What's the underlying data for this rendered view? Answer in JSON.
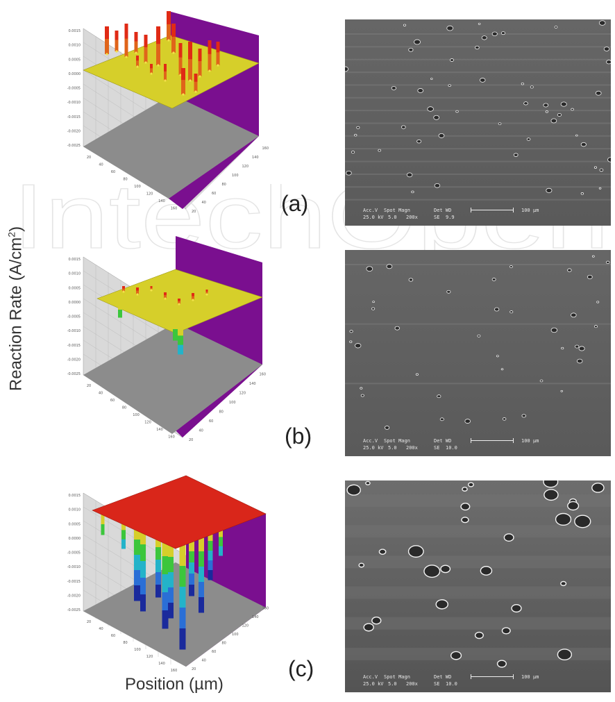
{
  "axis_labels": {
    "y": "Reaction Rate (A/cm",
    "y_sup": "2",
    "y_close": ")",
    "x": "Position (µm)"
  },
  "watermark": "IntechOpen",
  "panels": [
    {
      "label": "(a)",
      "z_ticks": [
        "0.0015",
        "0.0010",
        "0.0005",
        "0.0000",
        "-0.0005",
        "-0.0010",
        "-0.0015",
        "-0.0020",
        "-0.0025"
      ],
      "x_ticks": [
        "20",
        "40",
        "60",
        "80",
        "100",
        "120",
        "140",
        "160"
      ],
      "y_ticks": [
        "20",
        "40",
        "60",
        "80",
        "100",
        "120",
        "140",
        "160"
      ],
      "sem": {
        "acc_v": "Acc.V",
        "spot_magn": "Spot Magn",
        "det_wd": "Det  WD",
        "scale": "100 µm",
        "kv": "25.0 kV",
        "spot": "5.0",
        "magn": "200x",
        "det": "SE",
        "wd": "9.9"
      }
    },
    {
      "label": "(b)",
      "z_ticks": [
        "0.0015",
        "0.0010",
        "0.0005",
        "0.0000",
        "-0.0005",
        "-0.0010",
        "-0.0015",
        "-0.0020",
        "-0.0025"
      ],
      "x_ticks": [
        "20",
        "40",
        "60",
        "80",
        "100",
        "120",
        "140",
        "160"
      ],
      "y_ticks": [
        "20",
        "40",
        "60",
        "80",
        "100",
        "120",
        "140",
        "160"
      ],
      "sem": {
        "acc_v": "Acc.V",
        "spot_magn": "Spot Magn",
        "det_wd": "Det  WD",
        "scale": "100 µm",
        "kv": "25.0 kV",
        "spot": "5.0",
        "magn": "200x",
        "det": "SE",
        "wd": "10.0"
      }
    },
    {
      "label": "(c)",
      "z_ticks": [
        "0.0015",
        "0.0010",
        "0.0005",
        "0.0000",
        "-0.0005",
        "-0.0010",
        "-0.0015",
        "-0.0020",
        "-0.0025"
      ],
      "x_ticks": [
        "20",
        "40",
        "60",
        "80",
        "100",
        "120",
        "140",
        "160"
      ],
      "y_ticks": [
        "20",
        "40",
        "60",
        "80",
        "100",
        "120",
        "140",
        "160"
      ],
      "sem": {
        "acc_v": "Acc.V",
        "spot_magn": "Spot Magn",
        "det_wd": "Det  WD",
        "scale": "100 µm",
        "kv": "25.0 kV",
        "spot": "5.0",
        "magn": "200x",
        "det": "SE",
        "wd": "10.0"
      }
    }
  ],
  "colors": {
    "floor": "#8c8c8c",
    "wall_back": "#7a0f8f",
    "wall_left": "#d9d9d9",
    "plane_yellow": "#d6cf2a",
    "plane_red": "#d9261a",
    "sem_bg": "#5b5b5b"
  }
}
